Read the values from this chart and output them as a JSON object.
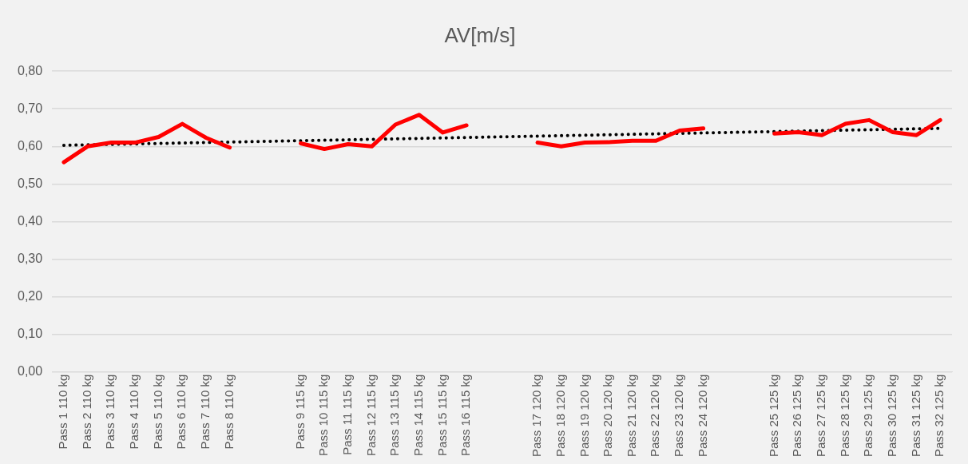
{
  "chart_data": {
    "type": "line",
    "title": "AV[m/s]",
    "categories": [
      "Pass 1 110 kg",
      "Pass 2 110 kg",
      "Pass 3 110 kg",
      "Pass 4 110 kg",
      "Pass 5 110 kg",
      "Pass 6 110 kg",
      "Pass 7 110 kg",
      "Pass 8 110 kg",
      null,
      null,
      "Pass 9 115 kg",
      "Pass 10 115 kg",
      "Pass 11 115 kg",
      "Pass 12 115 kg",
      "Pass 13 115 kg",
      "Pass 14 115 kg",
      "Pass 15 115 kg",
      "Pass 16 115 kg",
      null,
      null,
      "Pass 17 120 kg",
      "Pass 18 120 kg",
      "Pass 19 120 kg",
      "Pass 20 120 kg",
      "Pass 21 120 kg",
      "Pass 22 120 kg",
      "Pass 23 120 kg",
      "Pass 24 120 kg",
      null,
      null,
      "Pass 25 125 kg",
      "Pass 26 125 kg",
      "Pass 27 125 kg",
      "Pass 28 125 kg",
      "Pass 29 125 kg",
      "Pass 30 125 kg",
      "Pass 31 125 kg",
      "Pass 32 125 kg"
    ],
    "series": [
      {
        "color": "#ff0000",
        "line_style": "solid",
        "values": [
          0.558,
          0.6,
          0.61,
          0.61,
          0.625,
          0.66,
          0.623,
          0.597,
          null,
          null,
          0.608,
          0.593,
          0.606,
          0.6,
          0.658,
          0.684,
          0.637,
          0.656,
          null,
          null,
          0.61,
          0.6,
          0.61,
          0.611,
          0.615,
          0.615,
          0.642,
          0.648,
          null,
          null,
          0.634,
          0.638,
          0.63,
          0.66,
          0.67,
          0.638,
          0.63,
          0.67
        ]
      },
      {
        "type": "line",
        "color": "#000000",
        "line_style": "dotted",
        "x": [
          "Pass 1 110 kg",
          "Pass 32 125 kg"
        ],
        "values": [
          0.603,
          0.648
        ]
      }
    ],
    "ylim": [
      0,
      0.8
    ],
    "yticks": [
      {
        "value": 0,
        "label": "0,00"
      },
      {
        "value": 0.1,
        "label": "0,10"
      },
      {
        "value": 0.2,
        "label": "0,20"
      },
      {
        "value": 0.3,
        "label": "0,30"
      },
      {
        "value": 0.4,
        "label": "0,40"
      },
      {
        "value": 0.5,
        "label": "0,50"
      },
      {
        "value": 0.6,
        "label": "0,60"
      },
      {
        "value": 0.7,
        "label": "0,70"
      },
      {
        "value": 0.8,
        "label": "0,80"
      }
    ],
    "grid": "y",
    "legend": false,
    "marker": "none"
  }
}
